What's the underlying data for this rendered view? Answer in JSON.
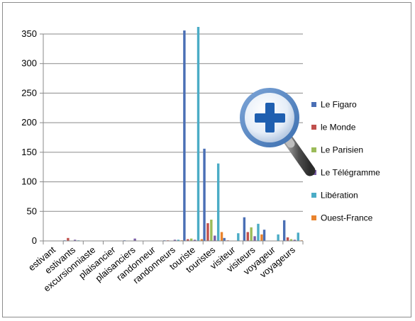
{
  "chart_data": {
    "type": "bar",
    "categories": [
      "estivant",
      "estivants",
      "excursionniaste",
      "plaisancier",
      "plaisanciers",
      "randonneur",
      "randonneurs",
      "touriste",
      "touristes",
      "visiteur",
      "visiteurs",
      "voyageur",
      "voyageurs"
    ],
    "series": [
      {
        "name": "Le Figaro",
        "color": "#4a6fb5",
        "values": [
          0,
          1,
          0,
          0,
          1,
          0,
          1,
          356,
          156,
          5,
          40,
          19,
          35
        ]
      },
      {
        "name": "le Monde",
        "color": "#c0504d",
        "values": [
          0,
          5,
          0,
          0,
          0,
          0,
          1,
          3,
          30,
          1,
          15,
          0,
          6
        ]
      },
      {
        "name": "Le Parisien",
        "color": "#9bbb59",
        "values": [
          0,
          0,
          0,
          0,
          0,
          0,
          0,
          4,
          36,
          0,
          23,
          0,
          3
        ]
      },
      {
        "name": "Le Télégramme",
        "color": "#7b5ea7",
        "values": [
          0,
          2,
          0,
          0,
          4,
          0,
          2,
          2,
          9,
          0,
          8,
          0,
          2
        ]
      },
      {
        "name": "Libération",
        "color": "#4bacc6",
        "values": [
          0,
          1,
          0,
          0,
          0,
          0,
          2,
          362,
          131,
          13,
          29,
          11,
          14
        ]
      },
      {
        "name": "Ouest-France",
        "color": "#e9832d",
        "values": [
          0,
          0,
          0,
          0,
          0,
          0,
          1,
          3,
          15,
          0,
          11,
          0,
          1
        ]
      }
    ],
    "ylim": [
      0,
      350
    ],
    "yticks": [
      0,
      50,
      100,
      150,
      200,
      250,
      300,
      350
    ],
    "grid": true,
    "legend_position": "right",
    "title": "",
    "xlabel": "",
    "ylabel": ""
  },
  "overlay": {
    "magnifier_icon": "zoom-in-magnifier-icon",
    "lens_color": "#2f6db5",
    "plus_color": "#1f5fb0"
  }
}
